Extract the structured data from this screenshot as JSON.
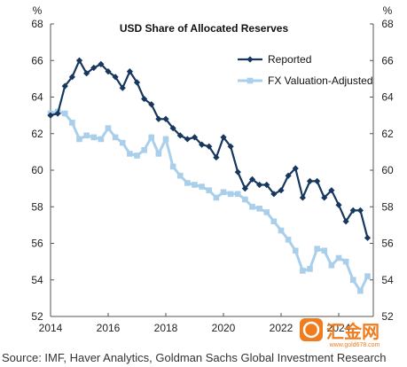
{
  "chart_data": {
    "type": "line",
    "title": "USD Share of Allocated Reserves",
    "left_unit": "%",
    "right_unit": "%",
    "ylim": [
      52,
      68
    ],
    "yticks": [
      52,
      54,
      56,
      58,
      60,
      62,
      64,
      66,
      68
    ],
    "xlim": [
      2014,
      2025.2
    ],
    "xticks": [
      2014,
      2016,
      2018,
      2020,
      2022,
      2024
    ],
    "legend_position": "top-right",
    "grid": false,
    "series": [
      {
        "name": "Reported",
        "color": "#17375e",
        "marker": "diamond",
        "x": [
          2014.0,
          2014.25,
          2014.5,
          2014.75,
          2015.0,
          2015.25,
          2015.5,
          2015.75,
          2016.0,
          2016.25,
          2016.5,
          2016.75,
          2017.0,
          2017.25,
          2017.5,
          2017.75,
          2018.0,
          2018.25,
          2018.5,
          2018.75,
          2019.0,
          2019.25,
          2019.5,
          2019.75,
          2020.0,
          2020.25,
          2020.5,
          2020.75,
          2021.0,
          2021.25,
          2021.5,
          2021.75,
          2022.0,
          2022.25,
          2022.5,
          2022.75,
          2023.0,
          2023.25,
          2023.5,
          2023.75,
          2024.0,
          2024.25,
          2024.5,
          2024.75,
          2025.0
        ],
        "values": [
          63.0,
          63.1,
          64.6,
          65.1,
          66.0,
          65.3,
          65.6,
          65.8,
          65.4,
          65.1,
          64.5,
          65.4,
          64.8,
          63.9,
          63.6,
          62.8,
          62.8,
          62.3,
          61.9,
          61.7,
          61.8,
          61.4,
          61.3,
          60.7,
          61.8,
          61.3,
          59.9,
          59.0,
          59.5,
          59.2,
          59.2,
          58.7,
          58.9,
          59.7,
          60.1,
          58.5,
          59.4,
          59.4,
          58.5,
          58.9,
          58.1,
          57.2,
          57.8,
          57.8,
          56.3
        ]
      },
      {
        "name": "FX Valuation-Adjusted",
        "color": "#a9cfeb",
        "marker": "square",
        "x": [
          2014.0,
          2014.25,
          2014.5,
          2014.75,
          2015.0,
          2015.25,
          2015.5,
          2015.75,
          2016.0,
          2016.25,
          2016.5,
          2016.75,
          2017.0,
          2017.25,
          2017.5,
          2017.75,
          2018.0,
          2018.25,
          2018.5,
          2018.75,
          2019.0,
          2019.25,
          2019.5,
          2019.75,
          2020.0,
          2020.25,
          2020.5,
          2020.75,
          2021.0,
          2021.25,
          2021.5,
          2021.75,
          2022.0,
          2022.25,
          2022.5,
          2022.75,
          2023.0,
          2023.25,
          2023.5,
          2023.75,
          2024.0,
          2024.25,
          2024.5,
          2024.75,
          2025.0
        ],
        "values": [
          63.1,
          63.2,
          63.1,
          62.6,
          61.7,
          61.9,
          61.8,
          61.7,
          62.3,
          61.8,
          61.5,
          60.9,
          60.8,
          61.1,
          61.8,
          60.9,
          61.7,
          60.2,
          59.7,
          59.3,
          59.2,
          59.1,
          58.9,
          58.5,
          58.8,
          58.7,
          58.7,
          58.4,
          58.0,
          57.9,
          57.7,
          57.2,
          56.7,
          56.2,
          55.6,
          54.5,
          54.6,
          55.7,
          55.6,
          54.8,
          55.2,
          55.0,
          54.0,
          53.4,
          54.2
        ]
      }
    ]
  },
  "source_text": "Source: IMF, Haver Analytics, Goldman Sachs Global Investment Research",
  "watermark": {
    "brand": "汇金网",
    "url": "www.gold678.com"
  }
}
